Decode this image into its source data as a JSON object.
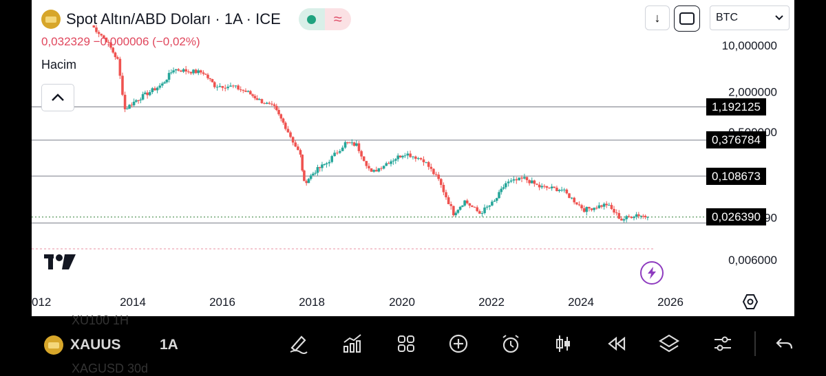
{
  "header": {
    "title": "Spot Altın/ABD Doları · 1A · ICE",
    "price_line": "0,032329 −0,000006 (−0,02%)",
    "volume_label": "Hacim",
    "pill_wave": "≈",
    "currency": "BTC",
    "download_glyph": "↓",
    "collapse_glyph": "^"
  },
  "icons": {
    "logo": "gold-bars-icon",
    "status": "market-status-dot-icon",
    "tradingview": "tradingview-logo-icon",
    "bolt": "lightning-icon",
    "settings": "hexagon-settings-icon"
  },
  "colors": {
    "up": "#26a69a",
    "down": "#ef5350",
    "price_line": "#e0465c",
    "bolt": "#8e3bbf"
  },
  "chart_data": {
    "type": "candlestick",
    "title": "Spot Altın/ABD Doları · 1A · ICE",
    "scale": "log",
    "y_ticks": [
      {
        "label": "10,000000",
        "value": 10
      },
      {
        "label": "2,000000",
        "value": 2
      },
      {
        "label": "0,500000",
        "value": 0.5
      },
      {
        "label": "0,026390",
        "value": 0.026
      },
      {
        "label": "0,006000",
        "value": 0.006
      }
    ],
    "x_ticks": [
      "012",
      "2014",
      "2016",
      "2018",
      "2020",
      "2022",
      "2024",
      "2026"
    ],
    "x_range": [
      "2012-06",
      "2026-06"
    ],
    "horizontal_lines": [
      {
        "label": "1,192125",
        "value": 1.192125
      },
      {
        "label": "0,376784",
        "value": 0.376784
      },
      {
        "label": "0,108673",
        "value": 0.108673
      },
      {
        "label": "0,026390",
        "value": 0.02639
      }
    ],
    "last_price": {
      "label": "0,026390",
      "value": 0.02639
    },
    "series": [
      {
        "date": "2013-03",
        "close": 20
      },
      {
        "date": "2013-07",
        "close": 12
      },
      {
        "date": "2013-10",
        "close": 6
      },
      {
        "date": "2013-12",
        "close": 1.1
      },
      {
        "date": "2014-03",
        "close": 1.5
      },
      {
        "date": "2014-06",
        "close": 1.9
      },
      {
        "date": "2014-10",
        "close": 2.6
      },
      {
        "date": "2015-01",
        "close": 4.4
      },
      {
        "date": "2015-05",
        "close": 4.1
      },
      {
        "date": "2015-09",
        "close": 3.9
      },
      {
        "date": "2015-12",
        "close": 2.5
      },
      {
        "date": "2016-05",
        "close": 2.4
      },
      {
        "date": "2016-09",
        "close": 1.95
      },
      {
        "date": "2016-12",
        "close": 1.5
      },
      {
        "date": "2017-04",
        "close": 1.15
      },
      {
        "date": "2017-07",
        "close": 0.6
      },
      {
        "date": "2017-11",
        "close": 0.22
      },
      {
        "date": "2017-12",
        "close": 0.085
      },
      {
        "date": "2018-03",
        "close": 0.13
      },
      {
        "date": "2018-06",
        "close": 0.17
      },
      {
        "date": "2018-11",
        "close": 0.34
      },
      {
        "date": "2019-02",
        "close": 0.32
      },
      {
        "date": "2019-06",
        "close": 0.12
      },
      {
        "date": "2019-10",
        "close": 0.17
      },
      {
        "date": "2020-03",
        "close": 0.24
      },
      {
        "date": "2020-08",
        "close": 0.19
      },
      {
        "date": "2020-12",
        "close": 0.095
      },
      {
        "date": "2021-04",
        "close": 0.03
      },
      {
        "date": "2021-07",
        "close": 0.046
      },
      {
        "date": "2021-11",
        "close": 0.03
      },
      {
        "date": "2022-03",
        "close": 0.045
      },
      {
        "date": "2022-06",
        "close": 0.085
      },
      {
        "date": "2022-11",
        "close": 0.1
      },
      {
        "date": "2023-03",
        "close": 0.075
      },
      {
        "date": "2023-09",
        "close": 0.068
      },
      {
        "date": "2024-03",
        "close": 0.034
      },
      {
        "date": "2024-09",
        "close": 0.041
      },
      {
        "date": "2025-01",
        "close": 0.024
      },
      {
        "date": "2025-05",
        "close": 0.029
      },
      {
        "date": "2025-08",
        "close": 0.0264
      }
    ]
  },
  "toolbar": {
    "ghost_symbol_top": "XU100   1H",
    "symbol": "XAUUSD",
    "interval": "1A",
    "ghost_symbol_bottom": "XAGUSD   30d"
  }
}
